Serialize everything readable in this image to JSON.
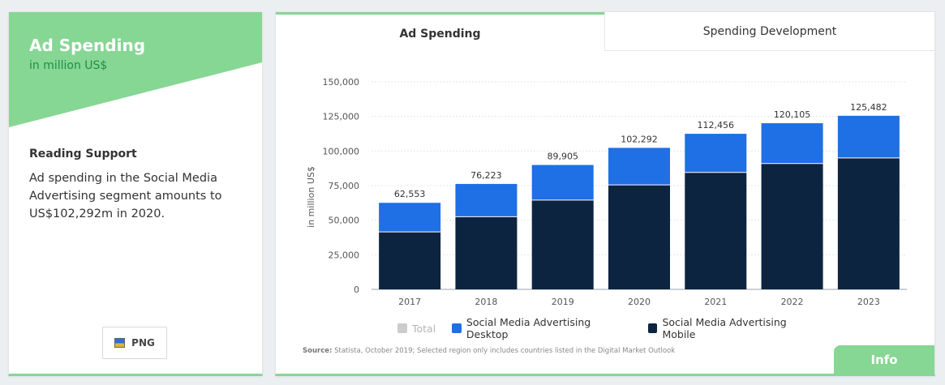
{
  "left_panel": {
    "title": "Ad Spending",
    "subtitle": "in million US$",
    "reading_support_title": "Reading Support",
    "reading_support_text": "Ad spending in the Social Media Advertising segment amounts to US$102,292m in 2020.",
    "png_button_label": "PNG"
  },
  "tabs": {
    "active": "Ad Spending",
    "inactive": "Spending Development"
  },
  "source": {
    "label": "Source:",
    "text": "Statista, October 2019; Selected region only includes countries listed in the Digital Market Outlook"
  },
  "info_button_label": "Info",
  "colors": {
    "accent_green": "#86d694",
    "desktop": "#1f6fe5",
    "mobile": "#0c2440",
    "total_disabled": "#cccccc"
  },
  "chart_data": {
    "type": "bar",
    "stacked": true,
    "categories": [
      "2017",
      "2018",
      "2019",
      "2020",
      "2021",
      "2022",
      "2023"
    ],
    "series": [
      {
        "name": "Social Media Advertising Mobile",
        "values": [
          41500,
          52500,
          64500,
          75500,
          84500,
          91000,
          95000
        ]
      },
      {
        "name": "Social Media Advertising Desktop",
        "values": [
          21053,
          23723,
          25405,
          26792,
          27956,
          29105,
          30482
        ]
      }
    ],
    "totals": [
      62553,
      76223,
      89905,
      102292,
      112456,
      120105,
      125482
    ],
    "total_labels": [
      "62,553",
      "76,223",
      "89,905",
      "102,292",
      "112,456",
      "120,105",
      "125,482"
    ],
    "legend": [
      "Total",
      "Social Media Advertising Desktop",
      "Social Media Advertising Mobile"
    ],
    "y_ticks": [
      0,
      25000,
      50000,
      75000,
      100000,
      125000,
      150000
    ],
    "y_tick_labels": [
      "0",
      "25,000",
      "50,000",
      "75,000",
      "100,000",
      "125,000",
      "150,000"
    ],
    "ylim": [
      0,
      150000
    ],
    "ylabel": "in million US$",
    "xlabel": ""
  }
}
